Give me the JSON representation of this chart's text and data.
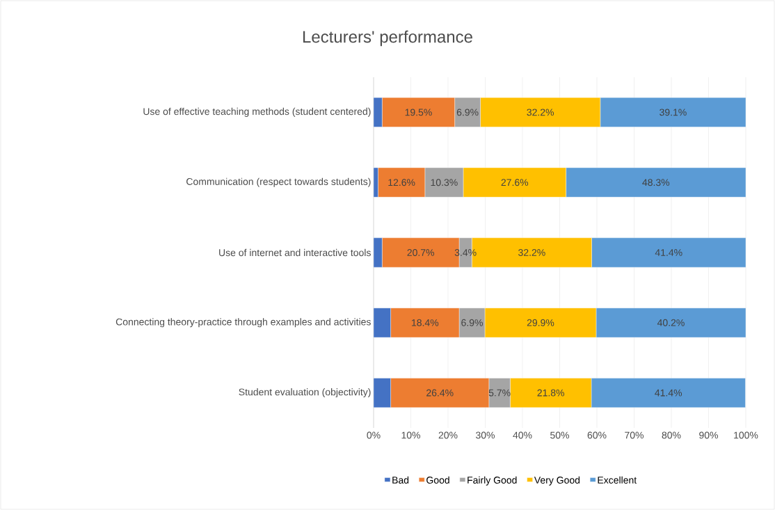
{
  "chart_data": {
    "type": "bar",
    "orientation": "horizontal",
    "stacked": true,
    "title": "Lecturers' performance",
    "categories": [
      "Use of effective teaching methods (student centered)",
      "Communication (respect towards students)",
      "Use of internet and interactive tools",
      "Connecting theory-practice through examples and activities",
      "Student evaluation (objectivity)"
    ],
    "series": [
      {
        "name": "Bad",
        "color": "#4472c4",
        "values": [
          2.3,
          1.2,
          2.3,
          4.6,
          4.6
        ],
        "value_labels": [
          null,
          null,
          null,
          null,
          null
        ]
      },
      {
        "name": "Good",
        "color": "#ed7d31",
        "values": [
          19.5,
          12.6,
          20.7,
          18.4,
          26.4
        ],
        "value_labels": [
          "19.5%",
          "12.6%",
          "20.7%",
          "18.4%",
          "26.4%"
        ]
      },
      {
        "name": "Fairly Good",
        "color": "#a5a5a5",
        "values": [
          6.9,
          10.3,
          3.4,
          6.9,
          5.7
        ],
        "value_labels": [
          "6.9%",
          "10.3%",
          "3.4%",
          "6.9%",
          "5.7%"
        ]
      },
      {
        "name": "Very Good",
        "color": "#ffc000",
        "values": [
          32.2,
          27.6,
          32.2,
          29.9,
          21.8
        ],
        "value_labels": [
          "32.2%",
          "27.6%",
          "32.2%",
          "29.9%",
          "21.8%"
        ]
      },
      {
        "name": "Excellent",
        "color": "#5b9bd5",
        "values": [
          39.1,
          48.3,
          41.4,
          40.2,
          41.4
        ],
        "value_labels": [
          "39.1%",
          "48.3%",
          "41.4%",
          "40.2%",
          "41.4%"
        ]
      }
    ],
    "xlim": [
      0,
      100
    ],
    "xticks": [
      {
        "value": 0,
        "label": "0%"
      },
      {
        "value": 10,
        "label": "10%"
      },
      {
        "value": 20,
        "label": "20%"
      },
      {
        "value": 30,
        "label": "30%"
      },
      {
        "value": 40,
        "label": "40%"
      },
      {
        "value": 50,
        "label": "50%"
      },
      {
        "value": 60,
        "label": "60%"
      },
      {
        "value": 70,
        "label": "70%"
      },
      {
        "value": 80,
        "label": "80%"
      },
      {
        "value": 90,
        "label": "90%"
      },
      {
        "value": 100,
        "label": "100%"
      }
    ],
    "grid": "x",
    "legend": "bottom"
  }
}
